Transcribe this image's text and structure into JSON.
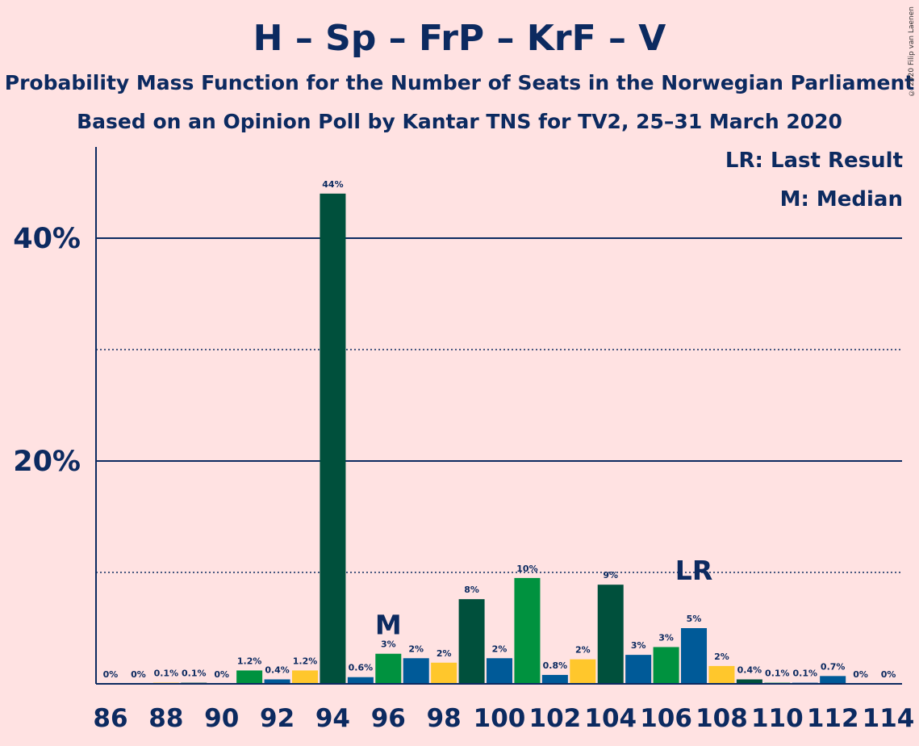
{
  "title": "H – Sp – FrP – KrF – V",
  "subtitle1": "Probability Mass Function for the Number of Seats in the Norwegian Parliament",
  "subtitle2": "Based on an Opinion Poll by Kantar TNS for TV2, 25–31 March 2020",
  "legend": {
    "lr": "LR: Last Result",
    "median": "M: Median"
  },
  "copyright": "© 2020 Filip van Laenen",
  "colors": {
    "background": "#FFE2E2",
    "text": "#0C2A60",
    "axis": "#0C2A60"
  },
  "chart_data": {
    "type": "bar",
    "x": [
      86,
      87,
      88,
      89,
      90,
      91,
      92,
      93,
      94,
      95,
      96,
      97,
      98,
      99,
      100,
      101,
      102,
      103,
      104,
      105,
      106,
      107,
      108,
      109,
      110,
      111,
      112,
      113,
      114
    ],
    "values": [
      0,
      0,
      0.1,
      0.1,
      0,
      1.2,
      0.4,
      1.2,
      44,
      0.6,
      2.7,
      2.3,
      1.9,
      7.6,
      2.3,
      9.5,
      0.8,
      2.2,
      8.9,
      2.6,
      3.3,
      5.0,
      1.6,
      0.4,
      0.1,
      0.1,
      0.7,
      0,
      0
    ],
    "labels": [
      "0%",
      "0%",
      "0.1%",
      "0.1%",
      "0%",
      "1.2%",
      "0.4%",
      "1.2%",
      "44%",
      "0.6%",
      "3%",
      "2%",
      "2%",
      "8%",
      "2%",
      "10%",
      "0.8%",
      "2%",
      "9%",
      "3%",
      "3%",
      "5%",
      "2%",
      "0.4%",
      "0.1%",
      "0.1%",
      "0.7%",
      "0%",
      "0%"
    ],
    "colors": [
      "#00923F",
      "#005A98",
      "#FFC72C",
      "#00503C",
      "#00923F",
      "#00923F",
      "#005A98",
      "#FFC72C",
      "#00503C",
      "#005A98",
      "#00923F",
      "#005A98",
      "#FFC72C",
      "#00503C",
      "#005A98",
      "#00923F",
      "#005A98",
      "#FFC72C",
      "#00503C",
      "#005A98",
      "#00923F",
      "#005A98",
      "#FFC72C",
      "#00503C",
      "#00923F",
      "#005A98",
      "#005A98",
      "#00503C",
      "#00923F"
    ],
    "x_ticks": [
      86,
      88,
      90,
      92,
      94,
      96,
      98,
      100,
      102,
      104,
      106,
      108,
      110,
      112,
      114
    ],
    "y_ticks": [
      {
        "value": 40,
        "label": "40%"
      },
      {
        "value": 20,
        "label": "20%"
      }
    ],
    "y_gridlines_dotted": [
      10,
      30
    ],
    "ylim": [
      0,
      48
    ],
    "median": {
      "x": 96,
      "label": "M"
    },
    "last_result": {
      "x": 107,
      "label": "LR"
    }
  }
}
